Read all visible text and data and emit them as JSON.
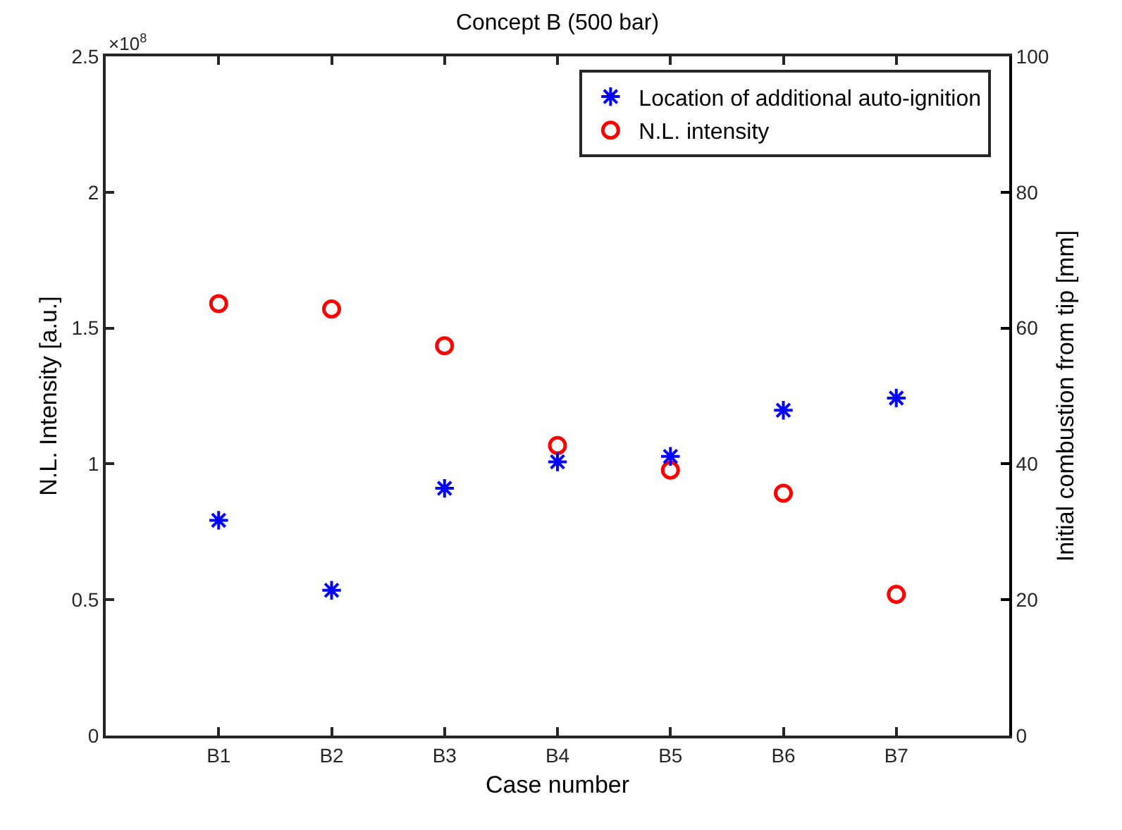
{
  "chart_data": {
    "type": "scatter",
    "title": "Concept B (500 bar)",
    "xlabel": "Case number",
    "ylabel": "N.L. Intensity [a.u.]",
    "y2label": "Initial combustion from tip [mm]",
    "categories": [
      "B1",
      "B2",
      "B3",
      "B4",
      "B5",
      "B6",
      "B7"
    ],
    "series": [
      {
        "name": "Location of additional auto-ignition",
        "color": "#0000ff",
        "marker": "cross",
        "axis": "y2",
        "values": [
          31.7,
          21.4,
          36.4,
          40.3,
          41.1,
          47.9,
          49.7
        ]
      },
      {
        "name": "N.L. intensity",
        "color": "#ff0000",
        "marker": "circle",
        "values": [
          1.59,
          1.57,
          1.435,
          1.068,
          0.977,
          0.892,
          0.52
        ]
      }
    ],
    "ylim": [
      0,
      2.5
    ],
    "yticks": [
      0,
      0.5,
      1,
      1.5,
      2,
      2.5
    ],
    "y2lim": [
      0,
      100
    ],
    "y2ticks": [
      0,
      20,
      40,
      60,
      80,
      100
    ],
    "annotations": [
      "×10$^{8}$"
    ],
    "legend": "top right"
  }
}
